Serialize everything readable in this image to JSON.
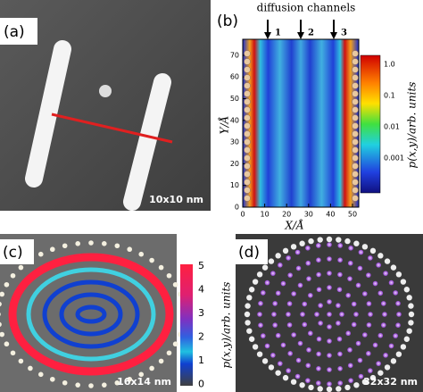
{
  "panel_a": {
    "label": "(a)",
    "scale": "10x10 nm"
  },
  "panel_b": {
    "label": "(b)",
    "title": "diffusion channels",
    "channels": [
      "1",
      "2",
      "3"
    ],
    "x_label": "X/Å",
    "y_label": "Y/Å",
    "x_ticks": [
      "0",
      "10",
      "20",
      "30",
      "40",
      "50"
    ],
    "y_ticks": [
      "0",
      "10",
      "20",
      "30",
      "40",
      "50",
      "60",
      "70"
    ],
    "colorbar_ticks": [
      "1.0",
      "0.1",
      "0.01",
      "0.001"
    ],
    "colorbar_label": "p(x,y)/arb. units"
  },
  "panel_c": {
    "label": "(c)",
    "scale": "16x14 nm",
    "colorbar_ticks": [
      "5",
      "4",
      "3",
      "2",
      "1",
      "0"
    ],
    "colorbar_label": "p(x,y)/arb. units"
  },
  "panel_d": {
    "label": "(d)",
    "scale": "32x32 nm"
  }
}
